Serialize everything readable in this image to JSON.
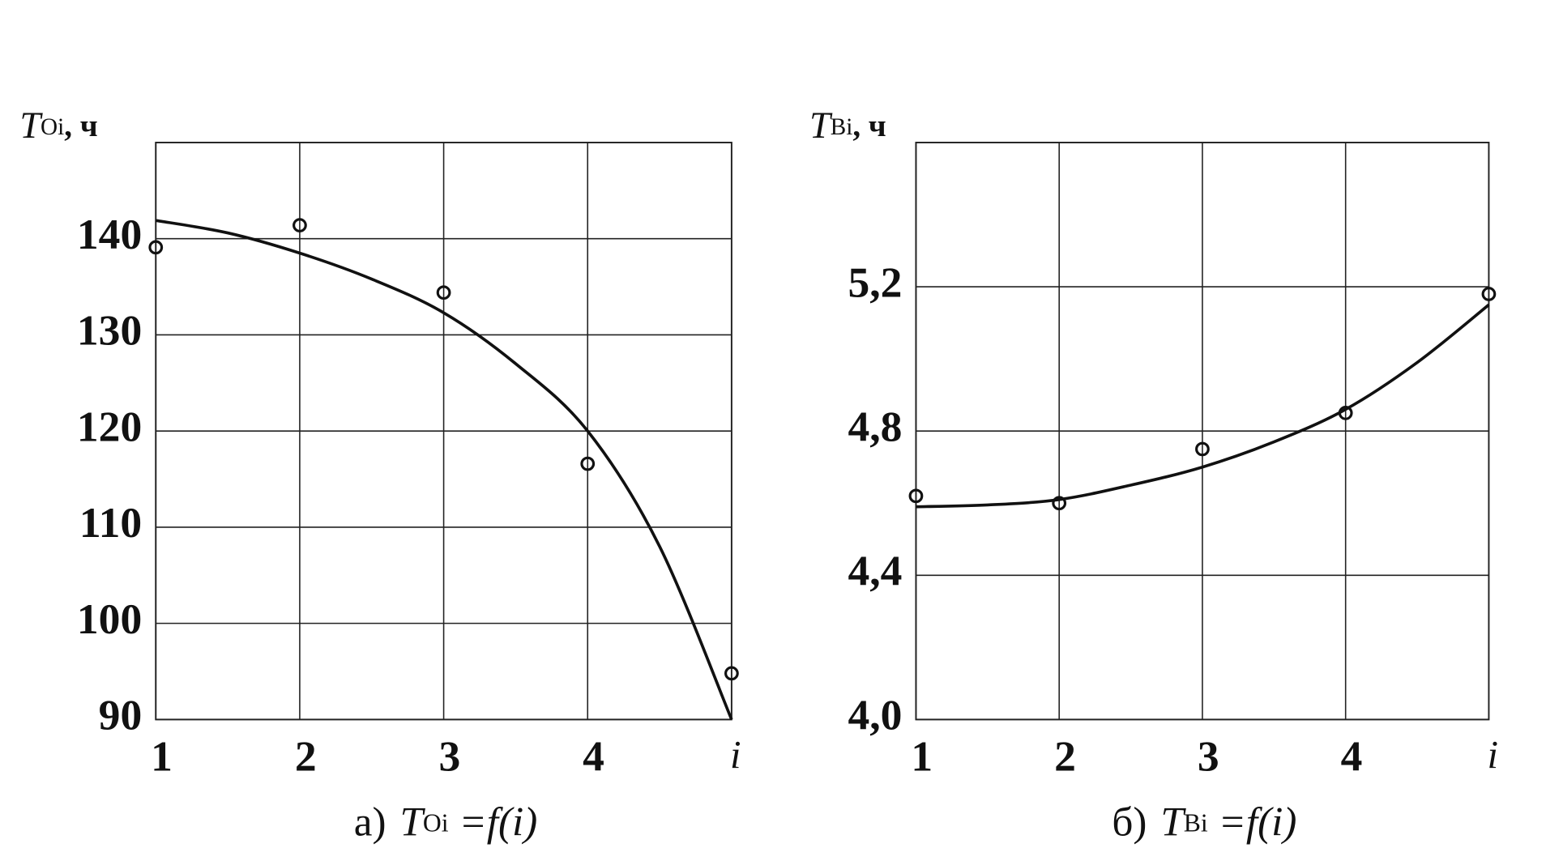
{
  "chart_data": [
    {
      "type": "scatter",
      "ylabel": {
        "main": "T",
        "sub": "Oi",
        "unit": ", ч"
      },
      "xlabel": "i",
      "caption": {
        "prefix": "а)",
        "main": "T",
        "sub": "Oi",
        "rest": " =f(i)"
      },
      "xlim": [
        1,
        5
      ],
      "xticks": [
        1,
        2,
        3,
        4
      ],
      "ylim": [
        90,
        150
      ],
      "yticks": [
        90,
        100,
        110,
        120,
        130,
        140
      ],
      "grid": true,
      "series": [
        {
          "style": "marker",
          "color": "#111",
          "x": [
            1,
            2,
            3,
            4,
            5
          ],
          "values": [
            139.1,
            141.4,
            134.4,
            116.6,
            94.8
          ]
        },
        {
          "style": "line",
          "color": "#111",
          "x": [
            1,
            1.5,
            2,
            2.5,
            3,
            3.5,
            4,
            4.5,
            5
          ],
          "values": [
            141.9,
            140.6,
            138.5,
            135.8,
            132.3,
            127,
            120,
            108,
            90
          ]
        }
      ]
    },
    {
      "type": "scatter",
      "ylabel": {
        "main": "T",
        "sub": "Вi",
        "unit": ", ч"
      },
      "xlabel": "i",
      "caption": {
        "prefix": "б)",
        "main": "T",
        "sub": "Вi",
        "rest": " =f(i)"
      },
      "xlim": [
        1,
        5
      ],
      "xticks": [
        1,
        2,
        3,
        4
      ],
      "ylim": [
        4.0,
        5.6
      ],
      "yticks": [
        {
          "value": 4.0,
          "label": "4,0"
        },
        {
          "value": 4.4,
          "label": "4,4"
        },
        {
          "value": 4.8,
          "label": "4,8"
        },
        {
          "value": 5.2,
          "label": "5,2"
        }
      ],
      "grid": true,
      "series": [
        {
          "style": "marker",
          "color": "#111",
          "x": [
            1,
            2,
            3,
            4,
            5
          ],
          "values": [
            4.62,
            4.6,
            4.75,
            4.85,
            5.18
          ]
        },
        {
          "style": "line",
          "color": "#111",
          "x": [
            1,
            1.5,
            2,
            2.5,
            3,
            3.5,
            4,
            4.5,
            5
          ],
          "values": [
            4.59,
            4.595,
            4.61,
            4.65,
            4.7,
            4.77,
            4.86,
            4.99,
            5.15
          ]
        }
      ]
    }
  ]
}
